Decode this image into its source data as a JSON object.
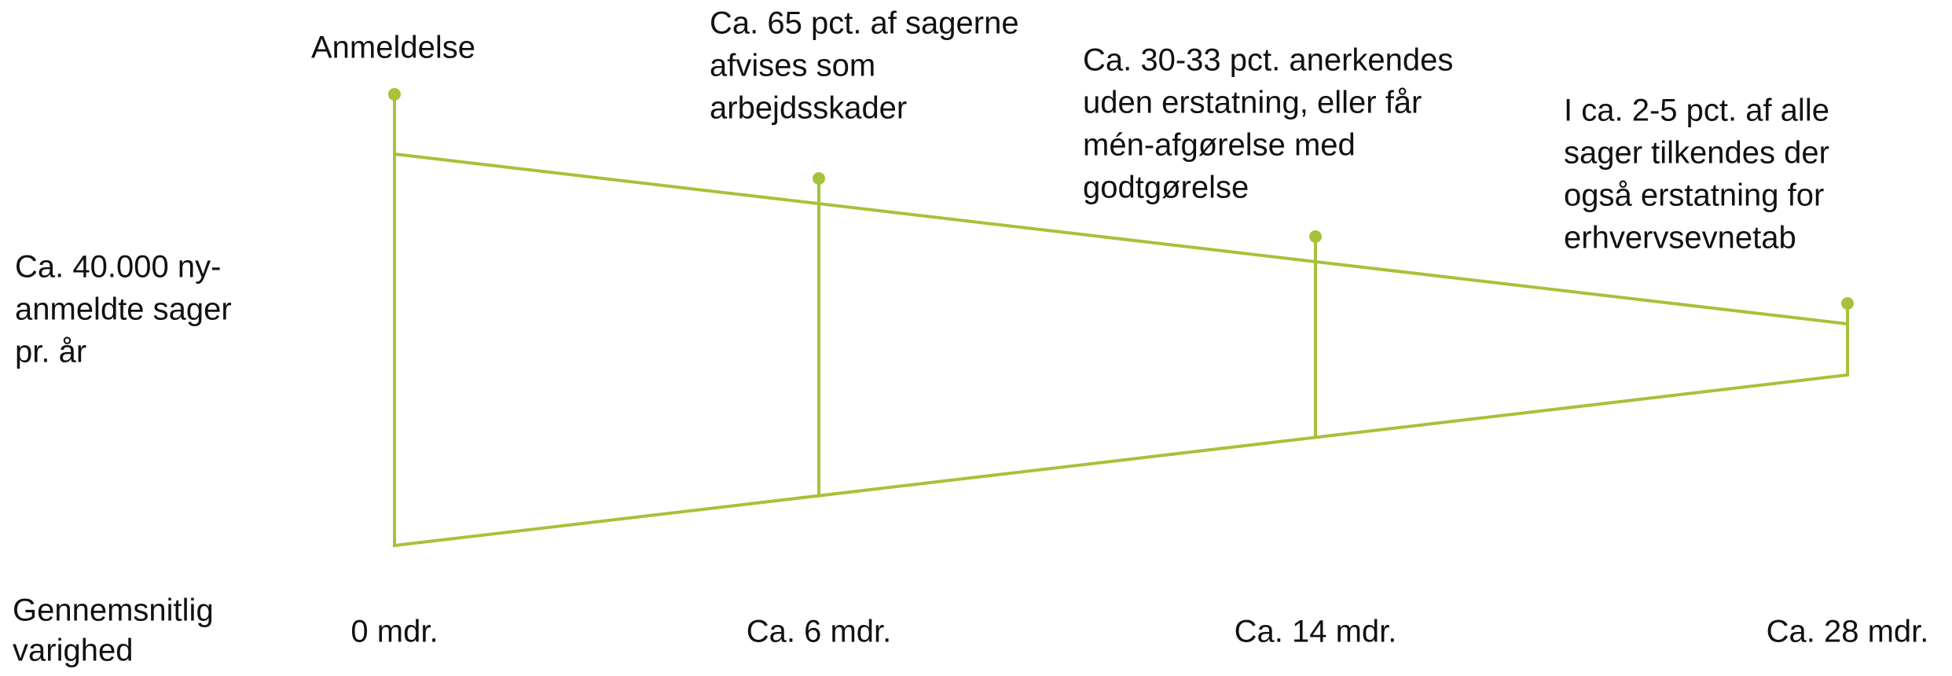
{
  "left_label": [
    "Ca. 40.000 ny-",
    "anmeldte sager",
    "pr. år"
  ],
  "duration_label": [
    "Gennemsnitlig",
    "varighed"
  ],
  "stages": [
    {
      "label": [
        "Anmeldelse"
      ],
      "duration": "0 mdr."
    },
    {
      "label": [
        "Ca. 65 pct. af sagerne",
        "afvises som",
        "arbejdsskader"
      ],
      "duration": "Ca. 6 mdr."
    },
    {
      "label": [
        "Ca. 30-33 pct. anerkendes",
        "uden erstatning, eller får",
        "mén-afgørelse med",
        "godtgørelse"
      ],
      "duration": "Ca. 14 mdr."
    },
    {
      "label": [
        "I ca. 2-5 pct. af alle",
        "sager tilkendes der",
        "også erstatning for",
        "erhvervsevnetab"
      ],
      "duration": "Ca. 28 mdr."
    }
  ]
}
